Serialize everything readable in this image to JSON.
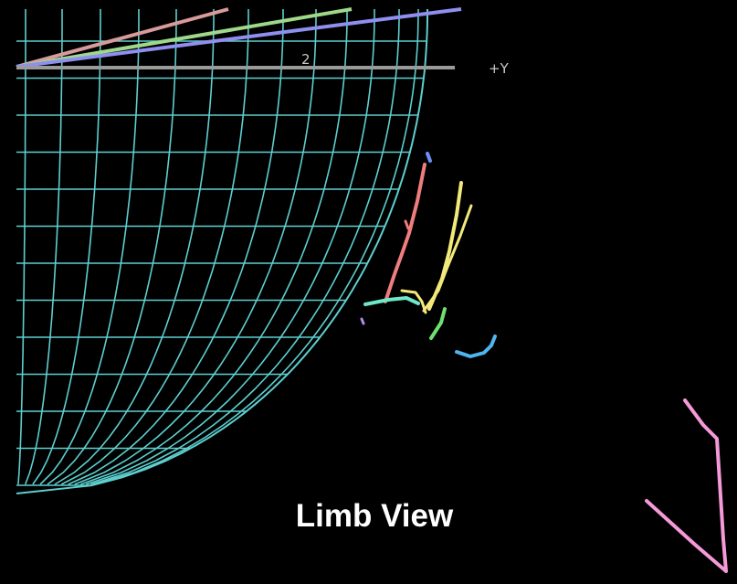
{
  "diagram": {
    "title": "Limb View",
    "axis": {
      "tick_label": "2",
      "direction_label": "+Y"
    }
  },
  "colors": {
    "background": "#000000",
    "grid": "#5ecfcf",
    "axis": "#9a9a9a",
    "axis_text": "#c8c8c8",
    "title": "#ffffff",
    "trace_red": "#f07d7d",
    "trace_yellow": "#f3e97a",
    "trace_green": "#6fe06f",
    "trace_cyan": "#6ee8c8",
    "trace_blue": "#4fb4f0",
    "trace_pink": "#f59ad8",
    "top_line_pink": "#d99a9a",
    "top_line_green": "#9ed98b",
    "top_line_violet": "#8f8ff0"
  }
}
